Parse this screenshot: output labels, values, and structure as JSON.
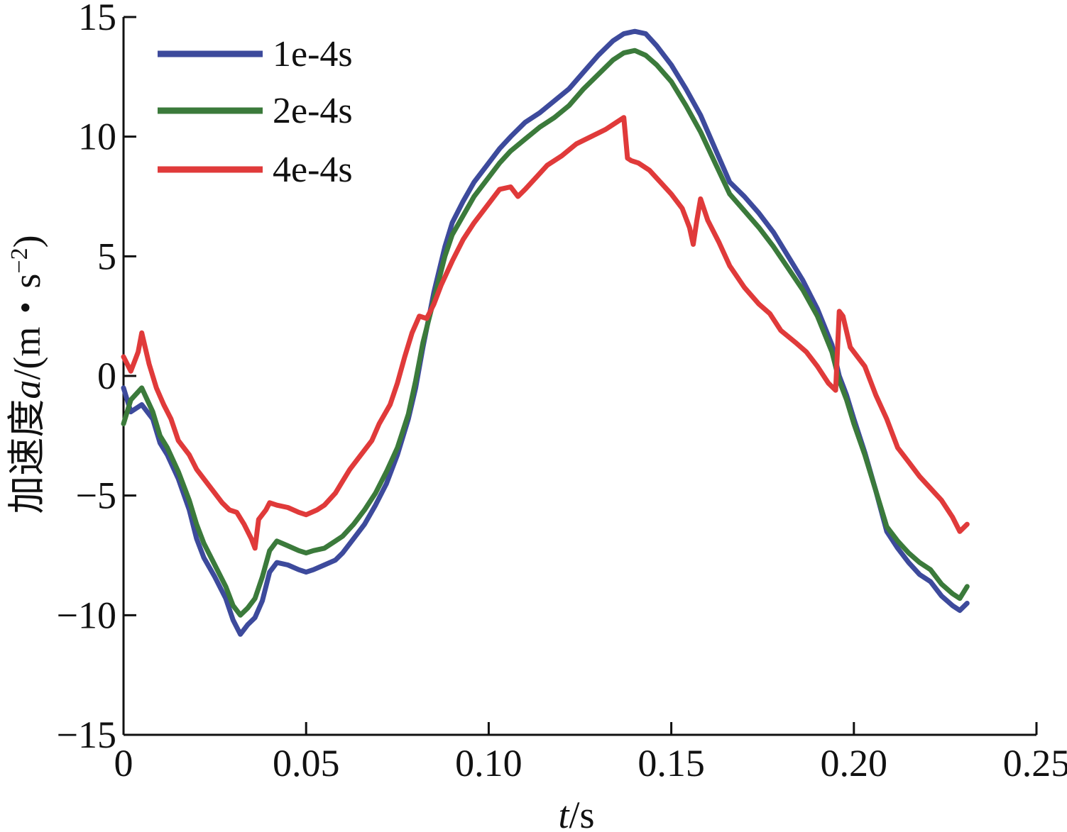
{
  "chart_data": {
    "type": "line",
    "xlabel": "t/s",
    "xlabel_italic": "t",
    "xlabel_unit": "/s",
    "ylabel": "加速度a/(m・s⁻²)",
    "ylabel_prefix": "加速度",
    "ylabel_italic": "a",
    "ylabel_unit": "/(m・s",
    "ylabel_exponent": "−2",
    "ylabel_close": ")",
    "xlim": [
      0,
      0.25
    ],
    "ylim": [
      -15,
      15
    ],
    "x_ticks": [
      0,
      0.05,
      0.1,
      0.15,
      0.2,
      0.25
    ],
    "x_tick_labels": [
      "0",
      "0.05",
      "0.10",
      "0.15",
      "0.20",
      "0.25"
    ],
    "y_ticks": [
      -15,
      -10,
      -5,
      0,
      5,
      10,
      15
    ],
    "y_tick_labels": [
      "−15",
      "−10",
      "−5",
      "0",
      "5",
      "10",
      "15"
    ],
    "grid": false,
    "legend_position": "top-left",
    "series": [
      {
        "name": "1e-4s",
        "color": "#3d4a9c",
        "x": [
          0,
          0.002,
          0.005,
          0.008,
          0.01,
          0.012,
          0.015,
          0.018,
          0.02,
          0.022,
          0.025,
          0.028,
          0.03,
          0.032,
          0.034,
          0.036,
          0.038,
          0.04,
          0.042,
          0.045,
          0.048,
          0.05,
          0.052,
          0.055,
          0.058,
          0.06,
          0.063,
          0.066,
          0.069,
          0.072,
          0.075,
          0.078,
          0.08,
          0.082,
          0.085,
          0.088,
          0.09,
          0.093,
          0.096,
          0.1,
          0.103,
          0.106,
          0.11,
          0.114,
          0.118,
          0.122,
          0.126,
          0.13,
          0.134,
          0.137,
          0.14,
          0.143,
          0.146,
          0.15,
          0.154,
          0.158,
          0.162,
          0.166,
          0.17,
          0.174,
          0.178,
          0.182,
          0.186,
          0.19,
          0.194,
          0.196,
          0.198,
          0.2,
          0.203,
          0.206,
          0.209,
          0.212,
          0.215,
          0.218,
          0.221,
          0.224,
          0.227,
          0.229,
          0.231
        ],
        "y": [
          -0.5,
          -1.5,
          -1.2,
          -1.8,
          -2.8,
          -3.3,
          -4.3,
          -5.6,
          -6.8,
          -7.6,
          -8.4,
          -9.3,
          -10.2,
          -10.8,
          -10.4,
          -10.1,
          -9.4,
          -8.2,
          -7.8,
          -7.9,
          -8.1,
          -8.2,
          -8.1,
          -7.9,
          -7.7,
          -7.4,
          -6.8,
          -6.2,
          -5.4,
          -4.5,
          -3.3,
          -1.8,
          -0.5,
          1.2,
          3.5,
          5.4,
          6.4,
          7.3,
          8.1,
          8.9,
          9.5,
          10.0,
          10.6,
          11.0,
          11.5,
          12.0,
          12.7,
          13.4,
          14.0,
          14.3,
          14.4,
          14.3,
          13.8,
          13.0,
          12.0,
          10.9,
          9.5,
          8.1,
          7.5,
          6.8,
          6.0,
          5.0,
          4.0,
          2.8,
          1.3,
          0.0,
          -0.8,
          -1.8,
          -3.2,
          -4.8,
          -6.5,
          -7.2,
          -7.8,
          -8.3,
          -8.6,
          -9.2,
          -9.6,
          -9.8,
          -9.5
        ]
      },
      {
        "name": "2e-4s",
        "color": "#3b7a3b",
        "x": [
          0,
          0.002,
          0.005,
          0.008,
          0.01,
          0.012,
          0.015,
          0.018,
          0.02,
          0.022,
          0.025,
          0.028,
          0.03,
          0.032,
          0.034,
          0.036,
          0.038,
          0.04,
          0.042,
          0.045,
          0.048,
          0.05,
          0.052,
          0.055,
          0.058,
          0.06,
          0.063,
          0.066,
          0.069,
          0.072,
          0.075,
          0.078,
          0.08,
          0.082,
          0.085,
          0.088,
          0.09,
          0.093,
          0.096,
          0.1,
          0.103,
          0.106,
          0.11,
          0.114,
          0.118,
          0.122,
          0.126,
          0.13,
          0.134,
          0.137,
          0.14,
          0.143,
          0.146,
          0.15,
          0.154,
          0.158,
          0.162,
          0.166,
          0.17,
          0.174,
          0.178,
          0.182,
          0.186,
          0.19,
          0.194,
          0.196,
          0.198,
          0.2,
          0.203,
          0.206,
          0.209,
          0.212,
          0.215,
          0.218,
          0.221,
          0.224,
          0.227,
          0.229,
          0.231
        ],
        "y": [
          -2.0,
          -1.0,
          -0.5,
          -1.5,
          -2.5,
          -3.0,
          -4.0,
          -5.2,
          -6.2,
          -7.0,
          -7.9,
          -8.8,
          -9.6,
          -10.0,
          -9.7,
          -9.3,
          -8.4,
          -7.3,
          -6.9,
          -7.1,
          -7.3,
          -7.4,
          -7.3,
          -7.2,
          -6.9,
          -6.7,
          -6.2,
          -5.6,
          -4.9,
          -4.0,
          -3.0,
          -1.6,
          -0.2,
          1.4,
          3.2,
          5.0,
          5.9,
          6.7,
          7.5,
          8.3,
          8.9,
          9.4,
          9.9,
          10.4,
          10.8,
          11.3,
          12.0,
          12.6,
          13.2,
          13.5,
          13.6,
          13.4,
          13.0,
          12.3,
          11.3,
          10.2,
          8.9,
          7.6,
          6.9,
          6.2,
          5.4,
          4.5,
          3.6,
          2.5,
          1.0,
          -0.2,
          -1.0,
          -2.0,
          -3.3,
          -4.8,
          -6.3,
          -6.9,
          -7.4,
          -7.8,
          -8.1,
          -8.7,
          -9.1,
          -9.3,
          -8.8
        ]
      },
      {
        "name": "4e-4s",
        "color": "#e03a3a",
        "x": [
          0,
          0.002,
          0.004,
          0.005,
          0.007,
          0.009,
          0.011,
          0.013,
          0.015,
          0.018,
          0.02,
          0.022,
          0.025,
          0.027,
          0.029,
          0.031,
          0.033,
          0.035,
          0.036,
          0.037,
          0.039,
          0.04,
          0.042,
          0.045,
          0.048,
          0.05,
          0.053,
          0.055,
          0.058,
          0.06,
          0.062,
          0.065,
          0.068,
          0.07,
          0.073,
          0.075,
          0.077,
          0.079,
          0.081,
          0.083,
          0.085,
          0.087,
          0.09,
          0.093,
          0.096,
          0.1,
          0.103,
          0.106,
          0.108,
          0.11,
          0.113,
          0.116,
          0.12,
          0.124,
          0.128,
          0.132,
          0.135,
          0.137,
          0.138,
          0.139,
          0.141,
          0.144,
          0.147,
          0.15,
          0.153,
          0.155,
          0.156,
          0.157,
          0.158,
          0.16,
          0.163,
          0.166,
          0.17,
          0.174,
          0.177,
          0.18,
          0.184,
          0.187,
          0.19,
          0.193,
          0.195,
          0.196,
          0.197,
          0.199,
          0.201,
          0.203,
          0.206,
          0.209,
          0.212,
          0.215,
          0.218,
          0.221,
          0.224,
          0.227,
          0.229,
          0.231
        ],
        "y": [
          0.8,
          0.2,
          1.0,
          1.8,
          0.5,
          -0.5,
          -1.2,
          -1.8,
          -2.7,
          -3.3,
          -3.9,
          -4.3,
          -4.9,
          -5.3,
          -5.6,
          -5.7,
          -6.2,
          -6.8,
          -7.2,
          -6.0,
          -5.6,
          -5.3,
          -5.4,
          -5.5,
          -5.7,
          -5.8,
          -5.6,
          -5.4,
          -4.9,
          -4.4,
          -3.9,
          -3.3,
          -2.7,
          -2.0,
          -1.2,
          -0.3,
          0.8,
          1.8,
          2.5,
          2.4,
          3.0,
          3.8,
          4.8,
          5.7,
          6.4,
          7.2,
          7.8,
          7.9,
          7.5,
          7.8,
          8.3,
          8.8,
          9.2,
          9.7,
          10.0,
          10.3,
          10.6,
          10.8,
          9.1,
          9.0,
          8.9,
          8.6,
          8.1,
          7.6,
          7.0,
          6.2,
          5.5,
          6.5,
          7.4,
          6.5,
          5.6,
          4.6,
          3.7,
          3.0,
          2.6,
          1.9,
          1.4,
          1.0,
          0.4,
          -0.3,
          -0.6,
          2.7,
          2.5,
          1.2,
          0.8,
          0.4,
          -0.8,
          -1.8,
          -3.0,
          -3.6,
          -4.2,
          -4.7,
          -5.2,
          -5.9,
          -6.5,
          -6.2
        ]
      }
    ]
  }
}
